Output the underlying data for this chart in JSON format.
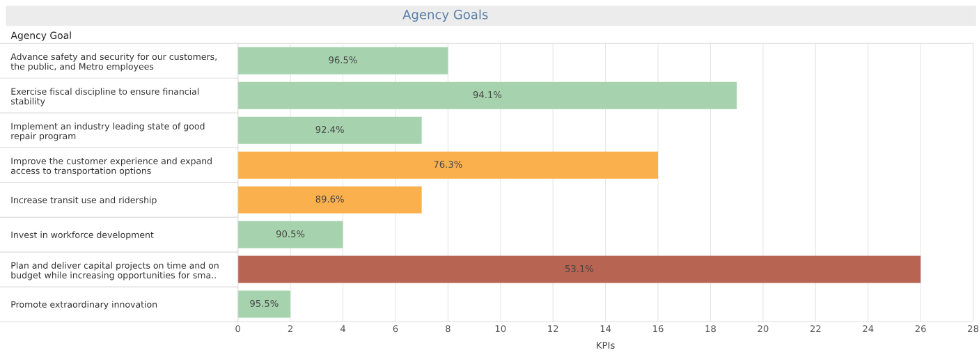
{
  "chart_data": {
    "type": "bar",
    "orientation": "horizontal",
    "title": "Agency Goals",
    "ylabel": "Agency Goal",
    "xlabel": "KPIs",
    "categories": [
      "Advance safety and security for our customers,\nthe public, and Metro employees",
      "Exercise fiscal discipline to ensure financial\nstability",
      "Implement an industry leading state of good\nrepair program",
      "Improve the customer experience and expand\naccess to transportation options",
      "Increase transit use and ridership",
      "Invest in workforce development",
      "Plan and deliver capital projects on time and on\nbudget while increasing opportunities for sma..",
      "Promote extraordinary innovation"
    ],
    "values": [
      8,
      19,
      7,
      16,
      7,
      4,
      26,
      2
    ],
    "colors": [
      "#a6d3ae",
      "#a6d3ae",
      "#a6d3ae",
      "#fbb04e",
      "#fbb04e",
      "#a6d3ae",
      "#b86452",
      "#a6d3ae"
    ],
    "annotations": [
      "96.5%",
      "94.1%",
      "92.4%",
      "76.3%",
      "89.6%",
      "90.5%",
      "53.1%",
      "95.5%"
    ],
    "xlim": [
      0,
      28
    ],
    "xticks": [
      0,
      2,
      4,
      6,
      8,
      10,
      12,
      14,
      16,
      18,
      20,
      22,
      24,
      26,
      28
    ],
    "grid": "x"
  }
}
